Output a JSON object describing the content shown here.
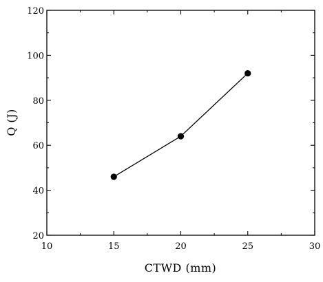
{
  "chart_data": {
    "type": "line",
    "title": "",
    "xlabel": "CTWD (mm)",
    "ylabel": "Q (J)",
    "xlim": [
      10,
      30
    ],
    "ylim": [
      20,
      120
    ],
    "x_ticks": [
      10,
      15,
      20,
      25,
      30
    ],
    "y_ticks": [
      20,
      40,
      60,
      80,
      100,
      120
    ],
    "grid": false,
    "legend": "none",
    "series": [
      {
        "x": [
          15,
          20,
          25
        ],
        "values": [
          46,
          64,
          92
        ],
        "color": "#000000",
        "marker": "filled-circle"
      }
    ]
  }
}
